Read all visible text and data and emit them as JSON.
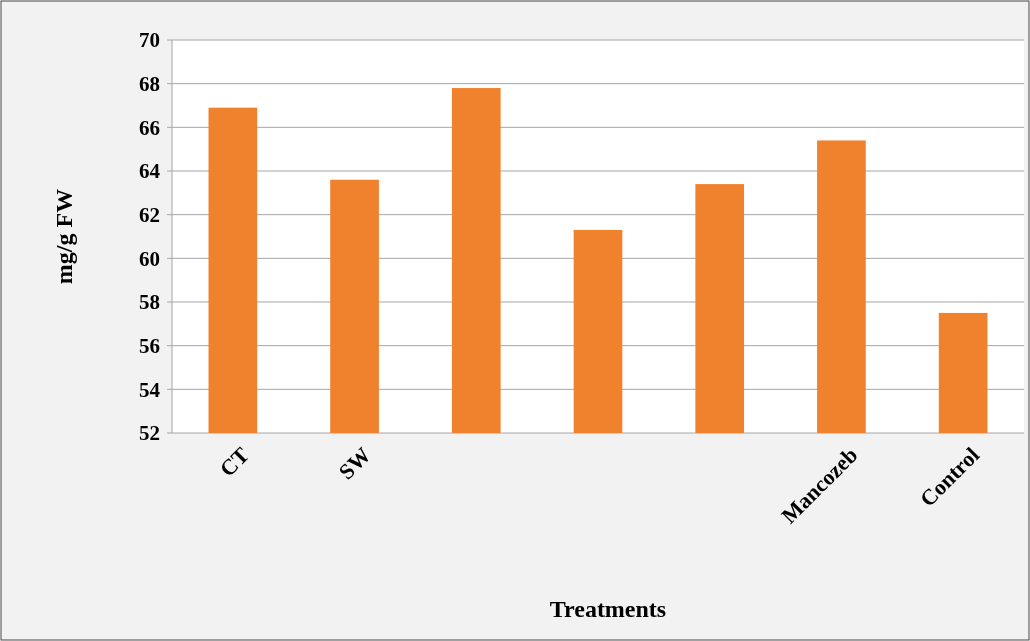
{
  "chart_data": {
    "type": "bar",
    "xlabel": "Treatments",
    "ylabel": "mg/g FW",
    "categories": [
      "CT",
      "SW",
      null,
      null,
      null,
      "Mancozeb",
      "Control"
    ],
    "values": [
      66.9,
      63.6,
      67.8,
      61.3,
      63.4,
      65.4,
      57.5
    ],
    "color": "#f0822e",
    "ylim": [
      52,
      70
    ],
    "yticks": [
      52,
      54,
      56,
      58,
      60,
      62,
      64,
      66,
      68,
      70
    ],
    "grid": "y"
  }
}
